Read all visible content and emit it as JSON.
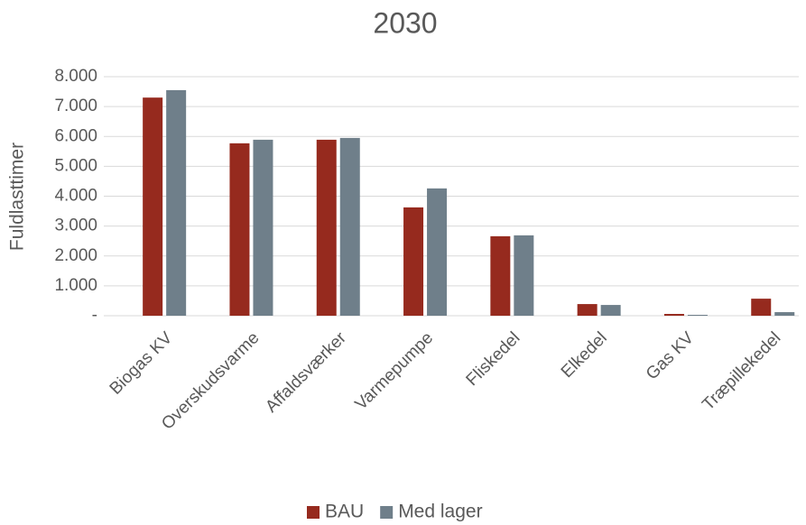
{
  "chart_data": {
    "type": "bar",
    "title": "2030",
    "y_label": "Fuldlasttimer",
    "categories": [
      "Biogas KV",
      "Overskudsvarme",
      "Affaldsværker",
      "Varmepumpe",
      "Fliskedel",
      "Elkedel",
      "Gas KV",
      "Træpillekedel"
    ],
    "series": [
      {
        "name": "BAU",
        "color": "#962a1e",
        "values": [
          7300,
          5770,
          5890,
          3625,
          2660,
          390,
          60,
          570
        ]
      },
      {
        "name": "Med lager",
        "color": "#6f7f8a",
        "values": [
          7550,
          5890,
          5950,
          4260,
          2690,
          360,
          30,
          120
        ]
      }
    ],
    "ylim": [
      0,
      8000
    ],
    "yticks": [
      {
        "value": 0,
        "label": "-"
      },
      {
        "value": 1000,
        "label": "1.000"
      },
      {
        "value": 2000,
        "label": "2.000"
      },
      {
        "value": 3000,
        "label": "3.000"
      },
      {
        "value": 4000,
        "label": "4.000"
      },
      {
        "value": 5000,
        "label": "5.000"
      },
      {
        "value": 6000,
        "label": "6.000"
      },
      {
        "value": 7000,
        "label": "7.000"
      },
      {
        "value": 8000,
        "label": "8.000"
      }
    ],
    "grid": true,
    "legend": "bottom"
  }
}
